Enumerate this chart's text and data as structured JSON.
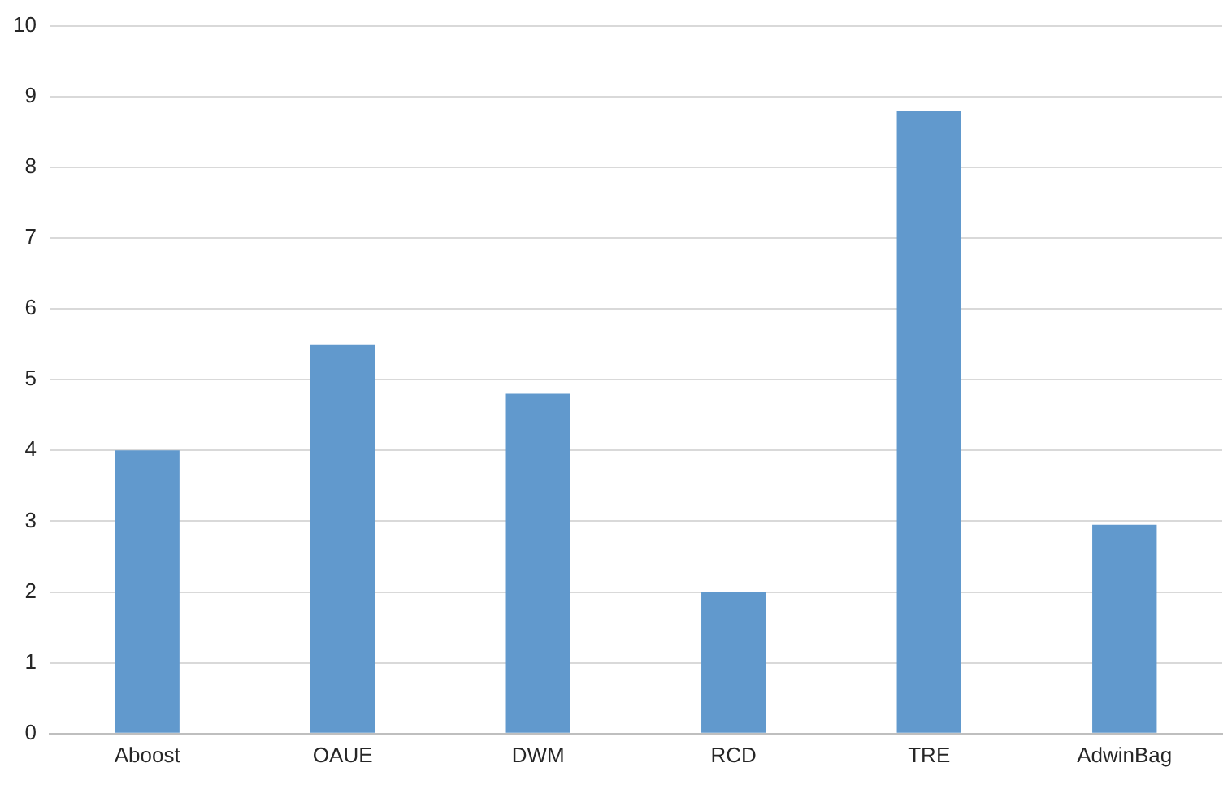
{
  "chart_data": {
    "type": "bar",
    "categories": [
      "Aboost",
      "OAUE",
      "DWM",
      "RCD",
      "TRE",
      "AdwinBag"
    ],
    "values": [
      4,
      5.5,
      4.8,
      2,
      8.8,
      2.95
    ],
    "color": "#6199cd",
    "ylim": [
      0,
      10
    ],
    "yticks": [
      0,
      1,
      2,
      3,
      4,
      5,
      6,
      7,
      8,
      9,
      10
    ],
    "grid": "y"
  }
}
